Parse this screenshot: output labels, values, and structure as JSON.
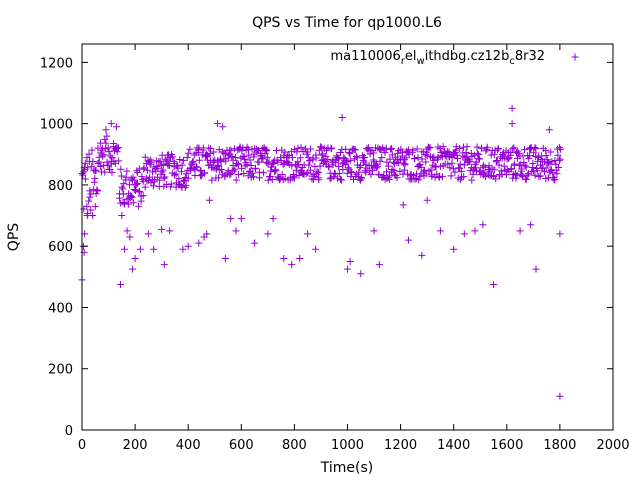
{
  "chart_data": {
    "type": "scatter",
    "title": "QPS vs Time for qp1000.L6",
    "xlabel": "Time(s)",
    "ylabel": "QPS",
    "xlim": [
      0,
      2000
    ],
    "ylim": [
      0,
      1260
    ],
    "xticks": [
      0,
      200,
      400,
      600,
      800,
      1000,
      1200,
      1400,
      1600,
      1800,
      2000
    ],
    "yticks": [
      0,
      200,
      400,
      600,
      800,
      1000,
      1200
    ],
    "grid": false,
    "legend_position": "top-right",
    "marker": "plus",
    "series": [
      {
        "name": "ma110006_rel_withdbg.cz12b_c8r32",
        "legend_parts": {
          "a": "ma110006",
          "b": "r",
          "c": "el",
          "d": "w",
          "e": "ithdbg.cz12b",
          "f": "c",
          "g": "8r32"
        },
        "color": "#9400d3",
        "main_band": {
          "x_start": 0,
          "x_end": 1800,
          "step": 4
        },
        "points": [
          [
            0,
            490
          ],
          [
            5,
            600
          ],
          [
            8,
            580
          ],
          [
            10,
            640
          ],
          [
            20,
            700
          ],
          [
            40,
            700
          ],
          [
            30,
            760
          ],
          [
            50,
            730
          ],
          [
            70,
            860
          ],
          [
            90,
            980
          ],
          [
            110,
            1000
          ],
          [
            130,
            990
          ],
          [
            145,
            475
          ],
          [
            150,
            700
          ],
          [
            160,
            590
          ],
          [
            170,
            650
          ],
          [
            180,
            630
          ],
          [
            190,
            525
          ],
          [
            200,
            560
          ],
          [
            220,
            590
          ],
          [
            250,
            640
          ],
          [
            270,
            590
          ],
          [
            300,
            655
          ],
          [
            310,
            540
          ],
          [
            330,
            650
          ],
          [
            380,
            590
          ],
          [
            400,
            600
          ],
          [
            440,
            610
          ],
          [
            460,
            630
          ],
          [
            470,
            640
          ],
          [
            480,
            750
          ],
          [
            510,
            1000
          ],
          [
            530,
            990
          ],
          [
            540,
            560
          ],
          [
            560,
            690
          ],
          [
            580,
            650
          ],
          [
            600,
            690
          ],
          [
            650,
            610
          ],
          [
            700,
            640
          ],
          [
            720,
            690
          ],
          [
            760,
            560
          ],
          [
            790,
            540
          ],
          [
            820,
            560
          ],
          [
            850,
            640
          ],
          [
            880,
            590
          ],
          [
            980,
            1020
          ],
          [
            1000,
            525
          ],
          [
            1010,
            550
          ],
          [
            1050,
            510
          ],
          [
            1100,
            650
          ],
          [
            1120,
            540
          ],
          [
            1210,
            735
          ],
          [
            1230,
            620
          ],
          [
            1280,
            570
          ],
          [
            1300,
            750
          ],
          [
            1350,
            650
          ],
          [
            1400,
            590
          ],
          [
            1440,
            640
          ],
          [
            1480,
            650
          ],
          [
            1510,
            670
          ],
          [
            1550,
            475
          ],
          [
            1620,
            1050
          ],
          [
            1620,
            1000
          ],
          [
            1650,
            650
          ],
          [
            1690,
            670
          ],
          [
            1710,
            525
          ],
          [
            1760,
            980
          ],
          [
            1800,
            640
          ],
          [
            1800,
            110
          ]
        ]
      }
    ]
  }
}
